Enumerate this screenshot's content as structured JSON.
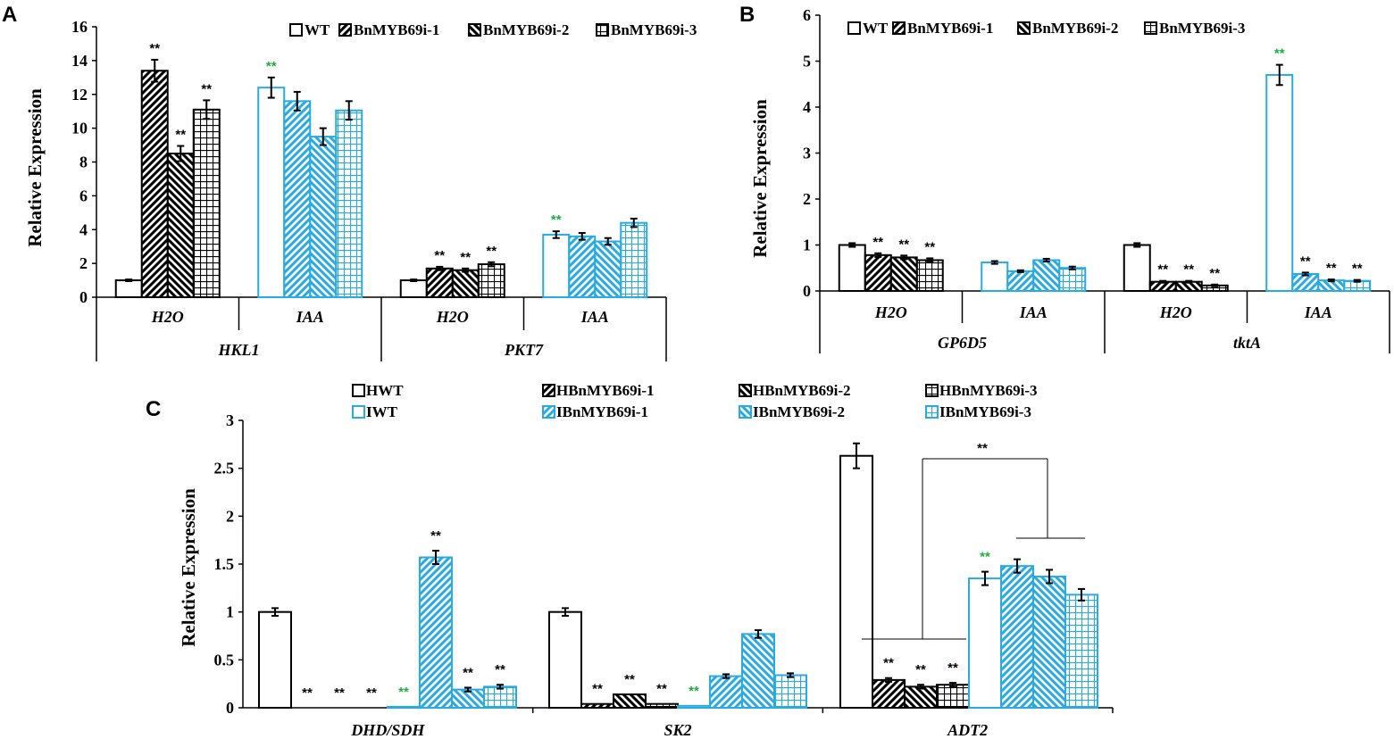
{
  "colors": {
    "h": "#000000",
    "i": "#29aae1",
    "sig_green": "#22aa44",
    "sig_black": "#000000"
  },
  "chart_data": [
    {
      "id": "A",
      "type": "bar",
      "panel_letter": "A",
      "ylabel": "Relative  Expression",
      "ylim": [
        0,
        16
      ],
      "yticks": [
        "0",
        "2",
        "4",
        "6",
        "8",
        "10",
        "12",
        "14",
        "16"
      ],
      "series_names": [
        "WT",
        "BnMYB69i-1",
        "BnMYB69i-2",
        "BnMYB69i-3"
      ],
      "genes": [
        {
          "name": "HKL1",
          "conditions": [
            {
              "name": "H2O",
              "values": [
                1.0,
                13.4,
                8.5,
                11.1
              ],
              "errors": [
                0.05,
                0.65,
                0.45,
                0.55
              ],
              "stars": [
                "",
                "**",
                "**",
                "**"
              ],
              "star_color": "black"
            },
            {
              "name": "IAA",
              "values": [
                12.4,
                11.6,
                9.5,
                11.05
              ],
              "errors": [
                0.6,
                0.55,
                0.5,
                0.55
              ],
              "stars": [
                "**",
                "",
                "",
                ""
              ],
              "star_color": "green"
            }
          ]
        },
        {
          "name": "PKT7",
          "conditions": [
            {
              "name": "H2O",
              "values": [
                1.0,
                1.7,
                1.6,
                1.95
              ],
              "errors": [
                0.05,
                0.1,
                0.1,
                0.12
              ],
              "stars": [
                "",
                "**",
                "**",
                "**"
              ],
              "star_color": "black"
            },
            {
              "name": "IAA",
              "values": [
                3.7,
                3.6,
                3.3,
                4.4
              ],
              "errors": [
                0.2,
                0.2,
                0.2,
                0.25
              ],
              "stars": [
                "**",
                "",
                "",
                ""
              ],
              "star_color": "green"
            }
          ]
        }
      ]
    },
    {
      "id": "B",
      "type": "bar",
      "panel_letter": "B",
      "ylabel": "Relative  Expression",
      "ylim": [
        0,
        6
      ],
      "yticks": [
        "0",
        "1",
        "2",
        "3",
        "4",
        "5",
        "6"
      ],
      "series_names": [
        "WT",
        "BnMYB69i-1",
        "BnMYB69i-2",
        "BnMYB69i-3"
      ],
      "genes": [
        {
          "name": "GP6D5",
          "conditions": [
            {
              "name": "H2O",
              "values": [
                1.0,
                0.78,
                0.73,
                0.67
              ],
              "errors": [
                0.04,
                0.04,
                0.04,
                0.04
              ],
              "stars": [
                "",
                "**",
                "**",
                "**"
              ],
              "star_color": "black"
            },
            {
              "name": "IAA",
              "values": [
                0.62,
                0.43,
                0.67,
                0.5
              ],
              "errors": [
                0.03,
                0.02,
                0.03,
                0.03
              ],
              "stars": [
                "",
                "",
                "",
                ""
              ],
              "star_color": "black"
            }
          ]
        },
        {
          "name": "tktA",
          "conditions": [
            {
              "name": "H2O",
              "values": [
                1.0,
                0.2,
                0.2,
                0.12
              ],
              "errors": [
                0.04,
                0.02,
                0.02,
                0.02
              ],
              "stars": [
                "",
                "**",
                "**",
                "**"
              ],
              "star_color": "black"
            },
            {
              "name": "IAA",
              "values": [
                4.7,
                0.37,
                0.23,
                0.22
              ],
              "errors": [
                0.22,
                0.03,
                0.02,
                0.02
              ],
              "stars": [
                "**",
                "**",
                "**",
                "**"
              ],
              "star_color": "mixed"
            }
          ]
        }
      ]
    },
    {
      "id": "C",
      "type": "bar",
      "panel_letter": "C",
      "ylabel": "Relative Expression",
      "ylim": [
        0,
        3
      ],
      "yticks": [
        "0",
        "0.5",
        "1",
        "1.5",
        "2",
        "2.5",
        "3"
      ],
      "legend": [
        "HWT",
        "HBnMYB69i-1",
        "HBnMYB69i-2",
        "HBnMYB69i-3",
        "IWT",
        "IBnMYB69i-1",
        "IBnMYB69i-2",
        "IBnMYB69i-3"
      ],
      "genes": [
        {
          "name": "DHD/SDH",
          "values": [
            1.0,
            0.0,
            0.0,
            0.0,
            0.01,
            1.57,
            0.19,
            0.22
          ],
          "errors": [
            0.04,
            0,
            0,
            0,
            0,
            0.07,
            0.02,
            0.02
          ],
          "stars": [
            "",
            "**",
            "**",
            "**",
            "**",
            "**",
            "**",
            "**"
          ],
          "star_colors": [
            "",
            "black",
            "black",
            "black",
            "green",
            "black",
            "black",
            "black"
          ]
        },
        {
          "name": "SK2",
          "values": [
            1.0,
            0.04,
            0.14,
            0.04,
            0.02,
            0.33,
            0.77,
            0.34
          ],
          "errors": [
            0.04,
            0,
            0,
            0,
            0,
            0.02,
            0.04,
            0.02
          ],
          "stars": [
            "",
            "**",
            "**",
            "**",
            "**",
            "",
            "",
            ""
          ],
          "star_colors": [
            "",
            "black",
            "black",
            "black",
            "green",
            "",
            "",
            ""
          ]
        },
        {
          "name": "ADT2",
          "values": [
            2.63,
            0.29,
            0.22,
            0.24,
            1.35,
            1.48,
            1.37,
            1.18
          ],
          "errors": [
            0.13,
            0.02,
            0.02,
            0.02,
            0.07,
            0.07,
            0.07,
            0.06
          ],
          "stars": [
            "",
            "**",
            "**",
            "**",
            "**",
            "",
            "",
            ""
          ],
          "star_colors": [
            "",
            "black",
            "black",
            "black",
            "green",
            "",
            "",
            ""
          ]
        }
      ],
      "group_comparison_label": "**"
    }
  ]
}
